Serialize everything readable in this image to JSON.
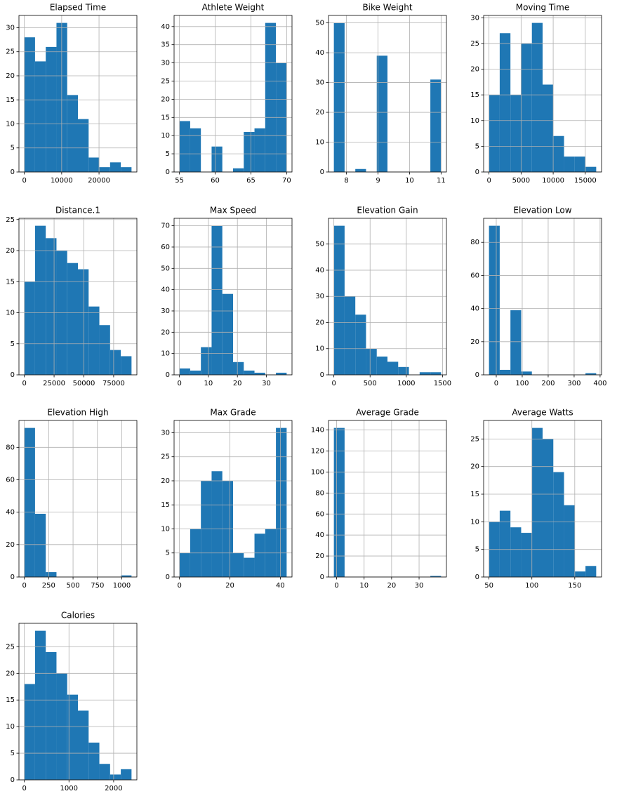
{
  "chart_data": [
    {
      "type": "histogram",
      "title": "Elapsed Time",
      "bins": [
        0,
        2870,
        5740,
        8610,
        11480,
        14350,
        17220,
        20090,
        22960,
        25830,
        28700
      ],
      "values": [
        28,
        23,
        26,
        31,
        16,
        11,
        3,
        1,
        2,
        1
      ],
      "color": "#1f77b4",
      "xlim": [
        -1435,
        30135
      ],
      "xticks": [
        0,
        10000,
        20000
      ],
      "ylim": [
        0,
        32.55
      ],
      "yticks": [
        0,
        5,
        10,
        15,
        20,
        25,
        30
      ],
      "grid": true
    },
    {
      "type": "histogram",
      "title": "Athlete Weight",
      "bins": [
        55,
        56.5,
        58,
        59.5,
        61,
        62.5,
        64,
        65.5,
        67,
        68.5,
        70
      ],
      "values": [
        14,
        12,
        0,
        7,
        0,
        1,
        11,
        12,
        41,
        30
      ],
      "color": "#1f77b4",
      "xlim": [
        54.25,
        70.75
      ],
      "xticks": [
        55,
        60,
        65,
        70
      ],
      "ylim": [
        0,
        43.05
      ],
      "yticks": [
        0,
        5,
        10,
        15,
        20,
        25,
        30,
        35,
        40
      ],
      "grid": true
    },
    {
      "type": "histogram",
      "title": "Bike Weight",
      "bins": [
        7.6,
        7.94,
        8.28,
        8.62,
        8.96,
        9.3,
        9.64,
        9.98,
        10.32,
        10.66,
        11
      ],
      "values": [
        50,
        0,
        1,
        0,
        39,
        0,
        0,
        0,
        0,
        31
      ],
      "color": "#1f77b4",
      "xlim": [
        7.43,
        11.17
      ],
      "xticks": [
        8,
        9,
        10,
        11
      ],
      "ylim": [
        0,
        52.5
      ],
      "yticks": [
        0,
        10,
        20,
        30,
        40,
        50
      ],
      "grid": true
    },
    {
      "type": "histogram",
      "title": "Moving Time",
      "bins": [
        0,
        1670,
        3340,
        5010,
        6680,
        8350,
        10020,
        11690,
        13360,
        15030,
        16700
      ],
      "values": [
        15,
        27,
        15,
        25,
        29,
        17,
        7,
        3,
        3,
        1
      ],
      "color": "#1f77b4",
      "xlim": [
        -835,
        17535
      ],
      "xticks": [
        0,
        5000,
        10000,
        15000
      ],
      "ylim": [
        0,
        30.45
      ],
      "yticks": [
        0,
        5,
        10,
        15,
        20,
        25,
        30
      ],
      "grid": true
    },
    {
      "type": "histogram",
      "title": "Distance.1",
      "bins": [
        0,
        9000,
        18000,
        27000,
        36000,
        45000,
        54000,
        63000,
        72000,
        81000,
        90000
      ],
      "values": [
        15,
        24,
        22,
        20,
        18,
        17,
        11,
        8,
        4,
        3
      ],
      "color": "#1f77b4",
      "xlim": [
        -4500,
        94500
      ],
      "xticks": [
        0,
        25000,
        50000,
        75000
      ],
      "ylim": [
        0,
        25.2
      ],
      "yticks": [
        0,
        5,
        10,
        15,
        20,
        25
      ],
      "grid": true
    },
    {
      "type": "histogram",
      "title": "Max Speed",
      "bins": [
        0,
        3.7,
        7.4,
        11.1,
        14.8,
        18.5,
        22.2,
        25.9,
        29.6,
        33.3,
        37
      ],
      "values": [
        3,
        2,
        13,
        70,
        38,
        6,
        2,
        1,
        0,
        1
      ],
      "color": "#1f77b4",
      "xlim": [
        -1.85,
        38.85
      ],
      "xticks": [
        0,
        10,
        20,
        30
      ],
      "ylim": [
        0,
        73.5
      ],
      "yticks": [
        0,
        10,
        20,
        30,
        40,
        50,
        60,
        70
      ],
      "grid": true
    },
    {
      "type": "histogram",
      "title": "Elevation Gain",
      "bins": [
        0,
        148,
        296,
        444,
        592,
        740,
        888,
        1036,
        1184,
        1332,
        1480
      ],
      "values": [
        57,
        30,
        23,
        10,
        7,
        5,
        3,
        0,
        1,
        1
      ],
      "color": "#1f77b4",
      "xlim": [
        -74,
        1554
      ],
      "xticks": [
        0,
        500,
        1000,
        1500
      ],
      "ylim": [
        0,
        59.85
      ],
      "yticks": [
        0,
        10,
        20,
        30,
        40,
        50
      ],
      "grid": true
    },
    {
      "type": "histogram",
      "title": "Elevation Low",
      "bins": [
        -28,
        13.3,
        54.6,
        95.9,
        137.2,
        178.5,
        219.8,
        261.1,
        302.4,
        343.7,
        385
      ],
      "values": [
        90,
        3,
        39,
        2,
        0,
        0,
        0,
        0,
        0,
        1
      ],
      "color": "#1f77b4",
      "xlim": [
        -48.65,
        405.65
      ],
      "xticks": [
        0,
        100,
        200,
        300,
        400
      ],
      "ylim": [
        0,
        94.5
      ],
      "yticks": [
        0,
        20,
        40,
        60,
        80
      ],
      "grid": true
    },
    {
      "type": "histogram",
      "title": "Elevation High",
      "bins": [
        0,
        110,
        220,
        330,
        440,
        550,
        660,
        770,
        880,
        990,
        1100
      ],
      "values": [
        92,
        39,
        3,
        0,
        0,
        0,
        0,
        0,
        0,
        1
      ],
      "color": "#1f77b4",
      "xlim": [
        -55,
        1155
      ],
      "xticks": [
        0,
        250,
        500,
        750,
        1000
      ],
      "ylim": [
        0,
        96.6
      ],
      "yticks": [
        0,
        20,
        40,
        60,
        80
      ],
      "grid": true
    },
    {
      "type": "histogram",
      "title": "Max Grade",
      "bins": [
        0,
        4.25,
        8.5,
        12.75,
        17,
        21.25,
        25.5,
        29.75,
        34,
        38.25,
        42.5
      ],
      "values": [
        5,
        10,
        20,
        22,
        20,
        5,
        4,
        9,
        10,
        31
      ],
      "color": "#1f77b4",
      "xlim": [
        -2.125,
        44.625
      ],
      "xticks": [
        0,
        20,
        40
      ],
      "ylim": [
        0,
        32.55
      ],
      "yticks": [
        0,
        5,
        10,
        15,
        20,
        25,
        30
      ],
      "grid": true
    },
    {
      "type": "histogram",
      "title": "Average Grade",
      "bins": [
        -1,
        2.9,
        6.8,
        10.7,
        14.6,
        18.5,
        22.4,
        26.3,
        30.2,
        34.1,
        38
      ],
      "values": [
        142,
        0,
        0,
        0,
        0,
        0,
        0,
        0,
        0,
        1
      ],
      "color": "#1f77b4",
      "xlim": [
        -2.95,
        39.95
      ],
      "xticks": [
        0,
        10,
        20,
        30
      ],
      "ylim": [
        0,
        149.1
      ],
      "yticks": [
        0,
        20,
        40,
        60,
        80,
        100,
        120,
        140
      ],
      "grid": true
    },
    {
      "type": "histogram",
      "title": "Average Watts",
      "bins": [
        50,
        62.5,
        75,
        87.5,
        100,
        112.5,
        125,
        137.5,
        150,
        162.5,
        175
      ],
      "values": [
        10,
        12,
        9,
        8,
        27,
        25,
        19,
        13,
        1,
        2
      ],
      "color": "#1f77b4",
      "xlim": [
        43.75,
        181.25
      ],
      "xticks": [
        50,
        100,
        150
      ],
      "ylim": [
        0,
        28.35
      ],
      "yticks": [
        0,
        5,
        10,
        15,
        20,
        25
      ],
      "grid": true
    },
    {
      "type": "histogram",
      "title": "Calories",
      "bins": [
        0,
        240,
        480,
        720,
        960,
        1200,
        1440,
        1680,
        1920,
        2160,
        2400
      ],
      "values": [
        18,
        28,
        24,
        20,
        16,
        13,
        7,
        3,
        1,
        2
      ],
      "color": "#1f77b4",
      "xlim": [
        -120,
        2520
      ],
      "xticks": [
        0,
        1000,
        2000
      ],
      "ylim": [
        0,
        29.4
      ],
      "yticks": [
        0,
        5,
        10,
        15,
        20,
        25
      ],
      "grid": true
    }
  ]
}
